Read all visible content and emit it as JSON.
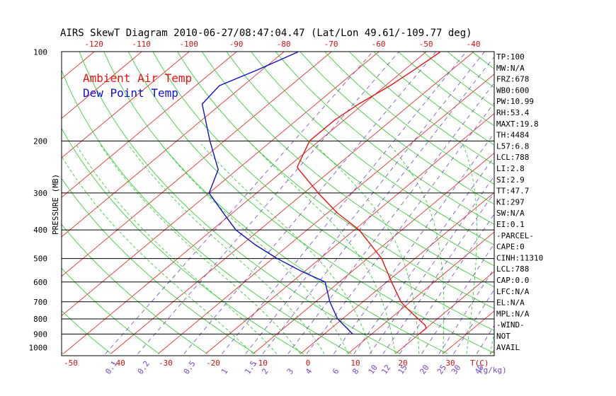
{
  "chart_data": {
    "type": "line",
    "title": "AIRS SkewT Diagram 2010-06-27/08:47:04.47 (Lat/Lon 49.61/-109.77 deg)",
    "ylabel": "PRESSURE (MB)",
    "x_unit_label": "T(C)",
    "mixing_unit_label": "(g/kg)",
    "legend": {
      "position": "top-left",
      "entries": [
        {
          "label": "Ambient Air Temp",
          "color": "#ee1111"
        },
        {
          "label": "Dew Point Temp",
          "color": "#1111cc"
        }
      ]
    },
    "pressure_axis": {
      "scale": "log",
      "range": [
        1000,
        100
      ],
      "ticks": [
        "100",
        "200",
        "300",
        "400",
        "500",
        "600",
        "700",
        "800",
        "900",
        "1000"
      ]
    },
    "bottom_temp_ticks": [
      "-50",
      "-40",
      "-30",
      "-20",
      "-10",
      "0",
      "10",
      "20",
      "30"
    ],
    "top_temp_ticks": [
      "-120",
      "-110",
      "-100",
      "-90",
      "-80",
      "-70",
      "-60",
      "-50",
      "-40"
    ],
    "mixing_ratio_ticks": [
      "0.1",
      "0.2",
      "0.5",
      "1",
      "1.5",
      "2",
      "3",
      "4",
      "6",
      "8",
      "10",
      "12",
      "15",
      "20",
      "25",
      "30",
      "40"
    ],
    "series": [
      {
        "name": "Ambient Air Temp",
        "color": "#ee1111",
        "points": [
          {
            "p": 900,
            "t": 20
          },
          {
            "p": 860,
            "t": 20
          },
          {
            "p": 840,
            "t": 19
          },
          {
            "p": 800,
            "t": 16
          },
          {
            "p": 750,
            "t": 12
          },
          {
            "p": 700,
            "t": 8
          },
          {
            "p": 600,
            "t": 1
          },
          {
            "p": 500,
            "t": -7
          },
          {
            "p": 400,
            "t": -19
          },
          {
            "p": 350,
            "t": -28
          },
          {
            "p": 300,
            "t": -37
          },
          {
            "p": 250,
            "t": -47
          },
          {
            "p": 245,
            "t": -48
          },
          {
            "p": 200,
            "t": -52
          },
          {
            "p": 170,
            "t": -52
          },
          {
            "p": 150,
            "t": -51
          },
          {
            "p": 130,
            "t": -49
          },
          {
            "p": 115,
            "t": -48
          },
          {
            "p": 100,
            "t": -47
          }
        ]
      },
      {
        "name": "Dew Point Temp",
        "color": "#1111cc",
        "points": [
          {
            "p": 900,
            "t": 6
          },
          {
            "p": 800,
            "t": -1
          },
          {
            "p": 700,
            "t": -7
          },
          {
            "p": 600,
            "t": -13
          },
          {
            "p": 550,
            "t": -21
          },
          {
            "p": 500,
            "t": -29
          },
          {
            "p": 450,
            "t": -37
          },
          {
            "p": 400,
            "t": -45
          },
          {
            "p": 350,
            "t": -52
          },
          {
            "p": 300,
            "t": -60
          },
          {
            "p": 250,
            "t": -64
          },
          {
            "p": 200,
            "t": -73
          },
          {
            "p": 150,
            "t": -84
          },
          {
            "p": 130,
            "t": -85
          },
          {
            "p": 115,
            "t": -81
          },
          {
            "p": 100,
            "t": -77
          }
        ]
      }
    ],
    "indices": [
      "TP:100",
      "MW:N/A",
      "FRZ:678",
      "WB0:600",
      "PW:10.99",
      "RH:53.4",
      "MAXT:19.8",
      "TH:4484",
      "L57:6.8",
      "LCL:788",
      "LI:2.8",
      "SI:2.9",
      "TT:47.7",
      "KI:297",
      "SW:N/A",
      "EI:0.1",
      "-PARCEL-",
      "CAPE:0",
      "CINH:11310",
      "LCL:788",
      "CAP:0.0",
      "LFC:N/A",
      "EL:N/A",
      "MPL:N/A",
      "-WIND-",
      "NOT",
      "AVAIL"
    ],
    "colors": {
      "isotherm": "#ee1111",
      "dry_adiabat": "#22cc22",
      "moist_adiabat": "#22cc22",
      "mixing_ratio": "#7744cc",
      "isobar": "#000000",
      "axis_text_top": "#cc1111",
      "axis_text_bottom": "#cc1111",
      "mixing_text": "#7744cc",
      "title": "#000000"
    }
  }
}
